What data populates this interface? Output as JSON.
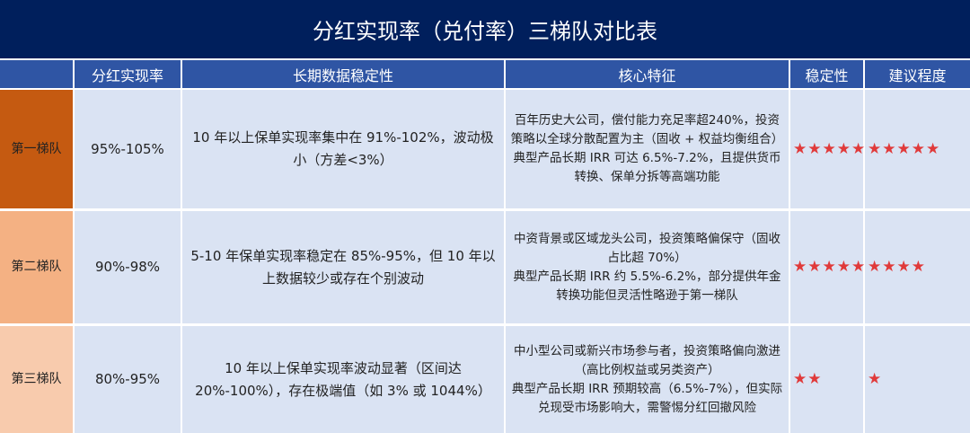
{
  "title": "分红实现率（兑付率）三梯队对比表",
  "headers": [
    "",
    "分红实现率",
    "长期数据稳定性",
    "核心特征",
    "稳定性",
    "建议程度"
  ],
  "colors": {
    "title_bg": "#001f5c",
    "header_bg": "#2f55a4",
    "body_bg": "#dae3f3",
    "star": "#e03a3a",
    "tier1": "#c55a11",
    "tier2": "#f4b183",
    "tier3": "#f8cbad"
  },
  "rows": [
    {
      "tier": "第一梯队",
      "rate": "95%-105%",
      "stability_text": "10 年以上保单实现率集中在 91%-102%，波动极小（方差<3%）",
      "features": "百年历史大公司，偿付能力充足率超240%，投资策略以全球分散配置为主（固收 + 权益均衡组合）\n典型产品长期 IRR 可达 6.5%-7.2%，且提供货币转换、保单分拆等高端功能",
      "stability_stars": "★★★★★",
      "recommend_stars": "★★★★★",
      "stability_rating": 5,
      "recommend_rating": 5
    },
    {
      "tier": "第二梯队",
      "rate": "90%-98%",
      "stability_text": "5-10 年保单实现率稳定在 85%-95%，但 10 年以上数据较少或存在个别波动",
      "features": "中资背景或区域龙头公司，投资策略偏保守（固收占比超 70%）\n典型产品长期 IRR 约 5.5%-6.2%，部分提供年金转换功能但灵活性略逊于第一梯队",
      "stability_stars": "★★★★★",
      "recommend_stars": "★★★★",
      "stability_rating": 5,
      "recommend_rating": 4
    },
    {
      "tier": "第三梯队",
      "rate": "80%-95%",
      "stability_text": "10 年以上保单实现率波动显著（区间达 20%-100%），存在极端值（如 3% 或 1044%）",
      "features": "中小型公司或新兴市场参与者，投资策略偏向激进（高比例权益或另类资产）\n典型产品长期 IRR 预期较高（6.5%-7%），但实际兑现受市场影响大，需警惕分红回撤风险",
      "stability_stars": "★★",
      "recommend_stars": "★",
      "stability_rating": 2,
      "recommend_rating": 1
    }
  ]
}
